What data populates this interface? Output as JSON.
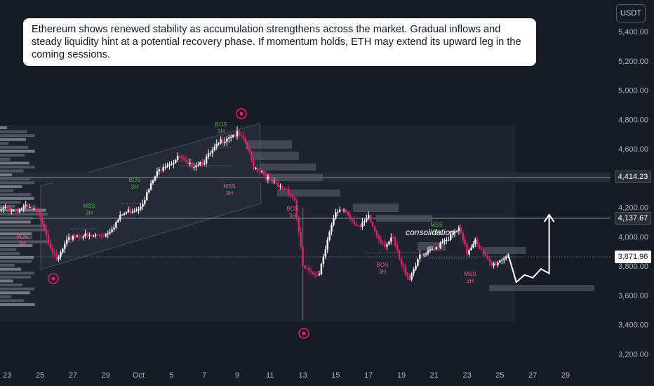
{
  "annotation": {
    "text": "Ethereum shows renewed stability as accumulation strengthens across the market. Gradual inflows and steady liquidity hint at a potential recovery phase. If momentum holds, ETH may extend its upward leg in the coming sessions."
  },
  "price_axis": {
    "currency": "USDT",
    "ticks": [
      "5,400.00",
      "5,200.00",
      "5,000.00",
      "4,800.00",
      "4,600.00",
      "4,200.00",
      "4,000.00",
      "3,800.00",
      "3,600.00",
      "3,400.00",
      "3,200.00"
    ],
    "tick_values": [
      5400,
      5200,
      5000,
      4800,
      4600,
      4200,
      4000,
      3800,
      3600,
      3400,
      3200
    ],
    "tags": {
      "level_high": "4,414.23",
      "level_mid": "4,137.67",
      "current": "3,871.96"
    }
  },
  "time_axis": {
    "labels": [
      "23",
      "25",
      "27",
      "29",
      "Oct",
      "5",
      "7",
      "9",
      "11",
      "13",
      "15",
      "17",
      "19",
      "21",
      "23",
      "25",
      "27",
      "29"
    ]
  },
  "markers": [
    {
      "bos": "BOS",
      "tf": "3H",
      "color": "#e85a7d"
    },
    {
      "bos": "MSS",
      "tf": "3H",
      "color": "#4caf50"
    },
    {
      "bos": "BOS",
      "tf": "3H",
      "color": "#4caf50"
    },
    {
      "bos": "BOS",
      "tf": "3H",
      "color": "#4caf50"
    },
    {
      "bos": "MSS",
      "tf": "3H",
      "color": "#e85a7d"
    },
    {
      "bos": "BOS",
      "tf": "3H",
      "color": "#e85a7d"
    },
    {
      "bos": "BOS",
      "tf": "3H",
      "color": "#e85a7d"
    },
    {
      "bos": "MSS",
      "tf": "3H",
      "color": "#4caf50"
    },
    {
      "bos": "MSS",
      "tf": "3H",
      "color": "#e85a7d"
    }
  ],
  "consolidation_label": "consolidation",
  "colors": {
    "up": "#ffffff",
    "down": "#e91e63",
    "accent": "#e91e63",
    "background": "#161a25"
  },
  "chart_data": {
    "type": "candlestick",
    "title": "",
    "xlabel": "",
    "ylabel": "",
    "ylim": [
      3100,
      5530
    ],
    "x_range": [
      "2025-09-22",
      "2025-10-29"
    ],
    "key_levels": [
      4414.23,
      4137.67
    ],
    "last_price": 3871.96,
    "path": [
      [
        "2025-09-22T00:00",
        4195
      ],
      [
        "2025-09-22T12:00",
        4175
      ],
      [
        "2025-09-23T00:00",
        4195
      ],
      [
        "2025-09-23T12:00",
        4180
      ],
      [
        "2025-09-24T00:00",
        4200
      ],
      [
        "2025-09-24T12:00",
        4185
      ],
      [
        "2025-09-25T00:00",
        4150
      ],
      [
        "2025-09-25T12:00",
        3980
      ],
      [
        "2025-09-26T00:00",
        3830
      ],
      [
        "2025-09-26T12:00",
        3940
      ],
      [
        "2025-09-27T00:00",
        4010
      ],
      [
        "2025-09-27T12:00",
        4010
      ],
      [
        "2025-09-28T00:00",
        4000
      ],
      [
        "2025-09-28T12:00",
        4010
      ],
      [
        "2025-09-29T00:00",
        4020
      ],
      [
        "2025-09-29T12:00",
        4080
      ],
      [
        "2025-09-30T00:00",
        4150
      ],
      [
        "2025-09-30T12:00",
        4180
      ],
      [
        "2025-10-01T00:00",
        4200
      ],
      [
        "2025-10-01T12:00",
        4290
      ],
      [
        "2025-10-02T00:00",
        4410
      ],
      [
        "2025-10-02T12:00",
        4490
      ],
      [
        "2025-10-03T00:00",
        4510
      ],
      [
        "2025-10-03T12:00",
        4540
      ],
      [
        "2025-10-04T00:00",
        4480
      ],
      [
        "2025-10-04T12:00",
        4500
      ],
      [
        "2025-10-05T00:00",
        4520
      ],
      [
        "2025-10-05T12:00",
        4580
      ],
      [
        "2025-10-06T00:00",
        4650
      ],
      [
        "2025-10-06T12:00",
        4690
      ],
      [
        "2025-10-07T00:00",
        4700
      ],
      [
        "2025-10-07T12:00",
        4640
      ],
      [
        "2025-10-08T00:00",
        4480
      ],
      [
        "2025-10-08T12:00",
        4450
      ],
      [
        "2025-10-09T00:00",
        4380
      ],
      [
        "2025-10-09T12:00",
        4340
      ],
      [
        "2025-10-10T00:00",
        4330
      ],
      [
        "2025-10-10T12:00",
        4250
      ],
      [
        "2025-10-11T00:00",
        3800
      ],
      [
        "2025-10-11T12:00",
        3740
      ],
      [
        "2025-10-12T00:00",
        3760
      ],
      [
        "2025-10-12T12:00",
        3990
      ],
      [
        "2025-10-13T00:00",
        4150
      ],
      [
        "2025-10-13T12:00",
        4190
      ],
      [
        "2025-10-14T00:00",
        4120
      ],
      [
        "2025-10-14T12:00",
        4060
      ],
      [
        "2025-10-15T00:00",
        4130
      ],
      [
        "2025-10-15T12:00",
        4010
      ],
      [
        "2025-10-16T00:00",
        3950
      ],
      [
        "2025-10-16T12:00",
        3980
      ],
      [
        "2025-10-17T00:00",
        3800
      ],
      [
        "2025-10-17T12:00",
        3720
      ],
      [
        "2025-10-18T00:00",
        3850
      ],
      [
        "2025-10-18T12:00",
        3880
      ],
      [
        "2025-10-19T00:00",
        3910
      ],
      [
        "2025-10-19T12:00",
        3980
      ],
      [
        "2025-10-20T00:00",
        4000
      ],
      [
        "2025-10-20T12:00",
        4050
      ],
      [
        "2025-10-21T00:00",
        3890
      ],
      [
        "2025-10-21T12:00",
        3990
      ],
      [
        "2025-10-22T00:00",
        3870
      ],
      [
        "2025-10-22T12:00",
        3800
      ],
      [
        "2025-10-23T00:00",
        3840
      ],
      [
        "2025-10-23T12:00",
        3880
      ]
    ],
    "projection": [
      [
        "2025-10-23T12:00",
        3880
      ],
      [
        "2025-10-24T00:00",
        3690
      ],
      [
        "2025-10-24T12:00",
        3740
      ],
      [
        "2025-10-25T00:00",
        3720
      ],
      [
        "2025-10-25T12:00",
        3780
      ],
      [
        "2025-10-26T00:00",
        3750
      ],
      [
        "2025-10-26T00:00",
        4150
      ]
    ]
  }
}
